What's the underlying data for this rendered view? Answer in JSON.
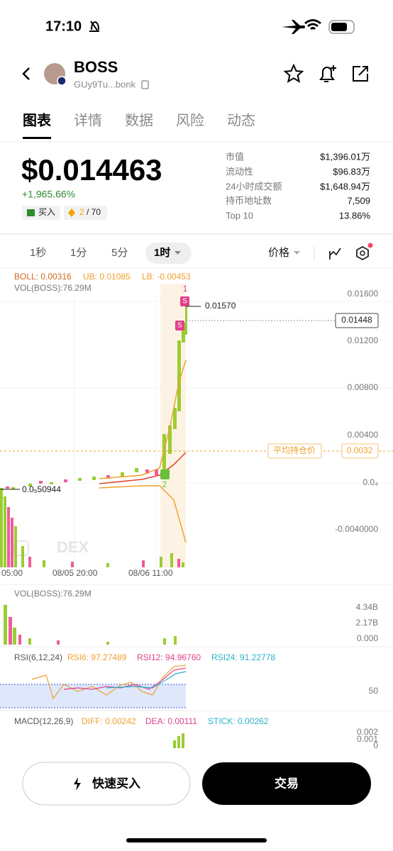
{
  "status_bar": {
    "time": "17:10"
  },
  "header": {
    "title": "BOSS",
    "address": "GUy9Tu...bonk"
  },
  "tabs": [
    "图表",
    "详情",
    "数据",
    "风险",
    "动态"
  ],
  "price": {
    "value": "$0.014463",
    "change": "+1,965.66%",
    "buy_badge": "买入",
    "score": "2",
    "score_total": "/ 70"
  },
  "stats": [
    {
      "label": "市值",
      "value": "$1,396.01万"
    },
    {
      "label": "流动性",
      "value": "$96.83万"
    },
    {
      "label": "24小时成交额",
      "value": "$1,648.94万"
    },
    {
      "label": "持币地址数",
      "value": "7,509"
    },
    {
      "label": "Top 10",
      "value": "13.86%"
    }
  ],
  "intervals": [
    "1秒",
    "1分",
    "5分",
    "1时"
  ],
  "price_selector": "价格",
  "chart": {
    "boll": "BOLL: 0.00316",
    "ub": "UB: 0.01085",
    "lb": "LB: -0.00453",
    "vol": "VOL(BOSS):76.29M",
    "price_axis": [
      "0.01600",
      "0.01200",
      "0.00800",
      "0.00400",
      "0.0₄",
      "-0.0040000"
    ],
    "current_price": "0.01448",
    "high": "0.01570",
    "low": "0.0₅50944",
    "avg_cost_label": "平均持仓价",
    "avg_cost": "0.0032",
    "markers": [
      "1",
      "S",
      "S",
      "2"
    ],
    "watermark": "DEX",
    "time_axis": [
      "05:00",
      "08/05 20:00",
      "08/06 11:00"
    ]
  },
  "volume_panel": {
    "label": "VOL(BOSS):76.29M",
    "axis": [
      "4.34B",
      "2.17B",
      "0.000"
    ]
  },
  "rsi_panel": {
    "label": "RSI(6,12,24)",
    "rsi6": "RSI6: 97.27489",
    "rsi12": "RSI12: 94.96760",
    "rsi24": "RSI24: 91.22778",
    "axis": [
      "50"
    ]
  },
  "macd_panel": {
    "label": "MACD(12,26,9)",
    "diff": "DIFF: 0.00242",
    "dea": "DEA: 0.00111",
    "stick": "STICK: 0.00262",
    "axis": [
      "0.002",
      "0.001",
      "0"
    ]
  },
  "actions": {
    "quick_buy": "快速买入",
    "trade": "交易"
  }
}
